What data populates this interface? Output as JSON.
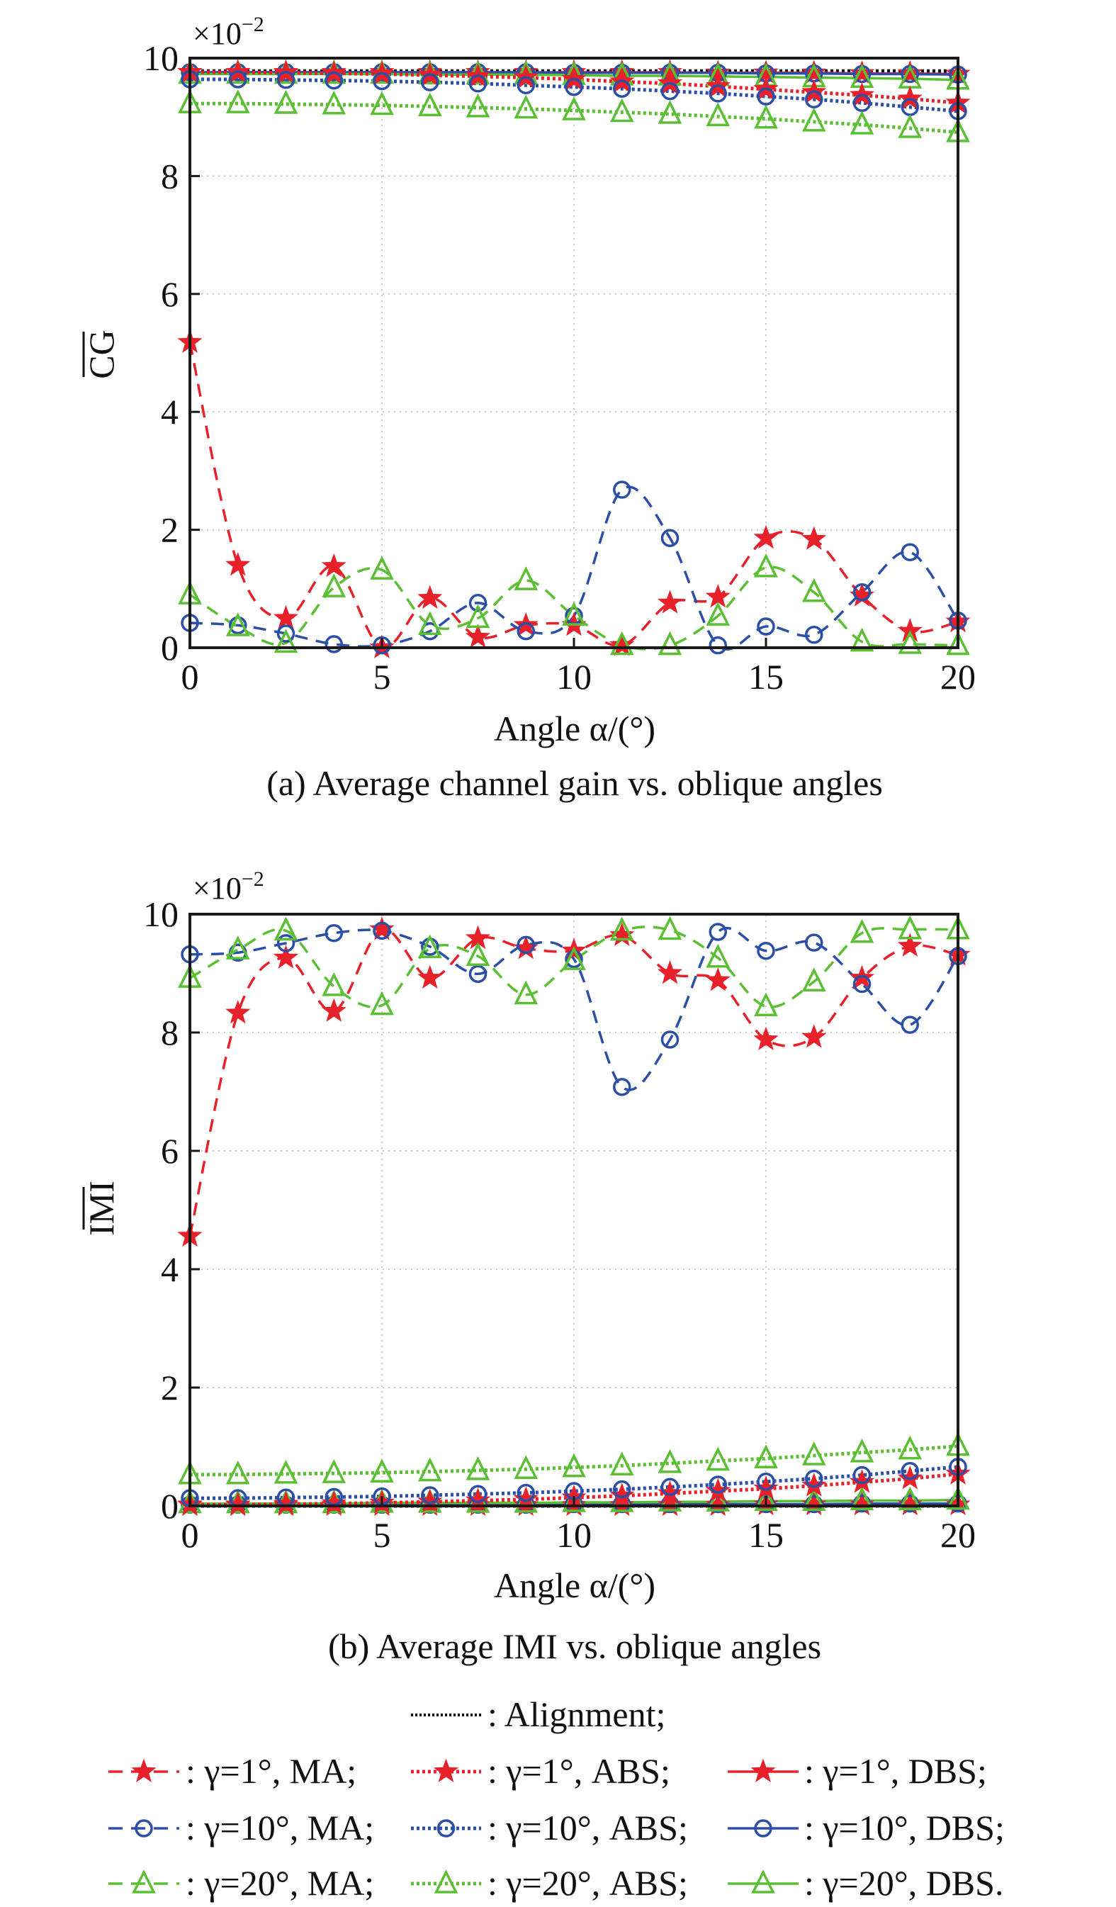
{
  "colors": {
    "red": "#e8202a",
    "blue": "#2a4fa8",
    "green": "#5bbf33",
    "black": "#111111",
    "grid": "#b5b5b5"
  },
  "legend": {
    "alignment": "Alignment;",
    "items": [
      {
        "key": "g1_ma",
        "label": "γ=1°, MA;"
      },
      {
        "key": "g1_abs",
        "label": "γ=1°, ABS;"
      },
      {
        "key": "g1_dbs",
        "label": "γ=1°, DBS;"
      },
      {
        "key": "g10_ma",
        "label": "γ=10°, MA;"
      },
      {
        "key": "g10_abs",
        "label": "γ=10°, ABS;"
      },
      {
        "key": "g10_dbs",
        "label": "γ=10°, DBS;"
      },
      {
        "key": "g20_ma",
        "label": "γ=20°, MA;"
      },
      {
        "key": "g20_abs",
        "label": "γ=20°, ABS;"
      },
      {
        "key": "g20_dbs",
        "label": "γ=20°, DBS."
      }
    ]
  },
  "chart_data": [
    {
      "type": "line",
      "id": "a",
      "title": "(a) Average channel gain vs. oblique angles",
      "xlabel": "Angle α/(°)",
      "ylabel": "CG",
      "ylabel_overline": true,
      "y_multiplier": "×10",
      "y_multiplier_exp": "−2",
      "xlim": [
        0,
        20
      ],
      "ylim": [
        0,
        10
      ],
      "xticks": [
        0,
        5,
        10,
        15,
        20
      ],
      "yticks": [
        0,
        2,
        4,
        6,
        8,
        10
      ],
      "grid": true,
      "x": [
        0,
        1.25,
        2.5,
        3.75,
        5,
        6.25,
        7.5,
        8.75,
        10,
        11.25,
        12.5,
        13.75,
        15,
        16.25,
        17.5,
        18.75,
        20
      ],
      "series": [
        {
          "name": "Alignment",
          "color": "black",
          "style": "dotted",
          "marker": "none",
          "values": [
            9.78,
            9.78,
            9.78,
            9.78,
            9.78,
            9.78,
            9.78,
            9.78,
            9.78,
            9.78,
            9.78,
            9.78,
            9.78,
            9.78,
            9.78,
            9.78,
            9.78
          ]
        },
        {
          "name": "γ=1°, DBS",
          "color": "red",
          "style": "solid",
          "marker": "star",
          "values": [
            9.76,
            9.76,
            9.76,
            9.76,
            9.76,
            9.76,
            9.76,
            9.76,
            9.76,
            9.76,
            9.76,
            9.75,
            9.75,
            9.75,
            9.74,
            9.74,
            9.73
          ]
        },
        {
          "name": "γ=10°, DBS",
          "color": "blue",
          "style": "solid",
          "marker": "circle",
          "values": [
            9.76,
            9.76,
            9.76,
            9.76,
            9.76,
            9.76,
            9.76,
            9.76,
            9.75,
            9.75,
            9.75,
            9.75,
            9.74,
            9.74,
            9.73,
            9.73,
            9.72
          ]
        },
        {
          "name": "γ=20°, DBS",
          "color": "green",
          "style": "solid",
          "marker": "triangle",
          "values": [
            9.73,
            9.73,
            9.73,
            9.73,
            9.73,
            9.72,
            9.72,
            9.72,
            9.71,
            9.7,
            9.7,
            9.69,
            9.68,
            9.67,
            9.66,
            9.65,
            9.63
          ]
        },
        {
          "name": "γ=1°, ABS",
          "color": "red",
          "style": "dotted",
          "marker": "star",
          "values": [
            9.76,
            9.76,
            9.75,
            9.74,
            9.73,
            9.71,
            9.69,
            9.67,
            9.64,
            9.6,
            9.57,
            9.52,
            9.47,
            9.42,
            9.37,
            9.31,
            9.24
          ]
        },
        {
          "name": "γ=10°, ABS",
          "color": "blue",
          "style": "dotted",
          "marker": "circle",
          "values": [
            9.64,
            9.64,
            9.63,
            9.62,
            9.61,
            9.59,
            9.57,
            9.54,
            9.51,
            9.48,
            9.44,
            9.4,
            9.35,
            9.3,
            9.24,
            9.17,
            9.1
          ]
        },
        {
          "name": "γ=20°, ABS",
          "color": "green",
          "style": "dotted",
          "marker": "triangle",
          "values": [
            9.23,
            9.23,
            9.22,
            9.21,
            9.2,
            9.18,
            9.16,
            9.14,
            9.11,
            9.08,
            9.05,
            9.01,
            8.97,
            8.92,
            8.87,
            8.81,
            8.74
          ]
        },
        {
          "name": "γ=1°, MA",
          "color": "red",
          "style": "dashed",
          "marker": "star",
          "values": [
            5.18,
            1.4,
            0.5,
            1.38,
            0.0,
            0.84,
            0.18,
            0.38,
            0.38,
            0.04,
            0.76,
            0.86,
            1.86,
            1.84,
            0.88,
            0.28,
            0.44
          ]
        },
        {
          "name": "γ=10°, MA",
          "color": "blue",
          "style": "dashed",
          "marker": "circle",
          "values": [
            0.42,
            0.38,
            0.24,
            0.06,
            0.04,
            0.28,
            0.76,
            0.28,
            0.54,
            2.68,
            1.86,
            0.04,
            0.36,
            0.22,
            0.94,
            1.62,
            0.46
          ]
        },
        {
          "name": "γ=20°, MA",
          "color": "green",
          "style": "dashed",
          "marker": "triangle",
          "values": [
            0.9,
            0.36,
            0.08,
            1.02,
            1.32,
            0.38,
            0.5,
            1.14,
            0.54,
            0.04,
            0.04,
            0.54,
            1.36,
            0.94,
            0.1,
            0.06,
            0.04
          ]
        }
      ]
    },
    {
      "type": "line",
      "id": "b",
      "title": "(b) Average IMI vs. oblique angles",
      "xlabel": "Angle α/(°)",
      "ylabel": "IMI",
      "ylabel_overline": true,
      "y_multiplier": "×10",
      "y_multiplier_exp": "−2",
      "xlim": [
        0,
        20
      ],
      "ylim": [
        0,
        10
      ],
      "xticks": [
        0,
        5,
        10,
        15,
        20
      ],
      "yticks": [
        0,
        2,
        4,
        6,
        8,
        10
      ],
      "grid": true,
      "x": [
        0,
        1.25,
        2.5,
        3.75,
        5,
        6.25,
        7.5,
        8.75,
        10,
        11.25,
        12.5,
        13.75,
        15,
        16.25,
        17.5,
        18.75,
        20
      ],
      "series": [
        {
          "name": "Alignment",
          "color": "black",
          "style": "dotted",
          "marker": "none",
          "values": [
            0.0,
            0.0,
            0.0,
            0.0,
            0.0,
            0.0,
            0.0,
            0.0,
            0.0,
            0.0,
            0.0,
            0.0,
            0.0,
            0.0,
            0.0,
            0.0,
            0.0
          ]
        },
        {
          "name": "γ=1°, DBS",
          "color": "red",
          "style": "solid",
          "marker": "star",
          "values": [
            0.01,
            0.01,
            0.01,
            0.01,
            0.01,
            0.01,
            0.01,
            0.01,
            0.01,
            0.01,
            0.01,
            0.01,
            0.02,
            0.02,
            0.02,
            0.02,
            0.02
          ]
        },
        {
          "name": "γ=10°, DBS",
          "color": "blue",
          "style": "solid",
          "marker": "circle",
          "values": [
            0.02,
            0.02,
            0.02,
            0.02,
            0.02,
            0.02,
            0.02,
            0.02,
            0.03,
            0.03,
            0.03,
            0.03,
            0.03,
            0.03,
            0.04,
            0.04,
            0.04
          ]
        },
        {
          "name": "γ=20°, DBS",
          "color": "green",
          "style": "solid",
          "marker": "triangle",
          "values": [
            0.04,
            0.04,
            0.04,
            0.04,
            0.05,
            0.05,
            0.05,
            0.05,
            0.06,
            0.06,
            0.07,
            0.07,
            0.08,
            0.08,
            0.09,
            0.09,
            0.1
          ]
        },
        {
          "name": "γ=1°, ABS",
          "color": "red",
          "style": "dotted",
          "marker": "star",
          "values": [
            0.02,
            0.02,
            0.03,
            0.04,
            0.05,
            0.07,
            0.09,
            0.11,
            0.14,
            0.17,
            0.21,
            0.25,
            0.29,
            0.34,
            0.4,
            0.46,
            0.54
          ]
        },
        {
          "name": "γ=10°, ABS",
          "color": "blue",
          "style": "dotted",
          "marker": "circle",
          "values": [
            0.13,
            0.13,
            0.14,
            0.15,
            0.16,
            0.18,
            0.2,
            0.22,
            0.25,
            0.28,
            0.32,
            0.36,
            0.41,
            0.46,
            0.52,
            0.59,
            0.66
          ]
        },
        {
          "name": "γ=20°, ABS",
          "color": "green",
          "style": "dotted",
          "marker": "triangle",
          "values": [
            0.53,
            0.53,
            0.54,
            0.55,
            0.56,
            0.58,
            0.6,
            0.62,
            0.65,
            0.68,
            0.72,
            0.76,
            0.8,
            0.85,
            0.9,
            0.95,
            1.01
          ]
        },
        {
          "name": "γ=1°, MA",
          "color": "red",
          "style": "dashed",
          "marker": "star",
          "values": [
            4.56,
            8.33,
            9.26,
            8.36,
            9.74,
            8.92,
            9.59,
            9.42,
            9.38,
            9.64,
            9.0,
            8.88,
            7.88,
            7.92,
            8.92,
            9.46,
            9.31
          ]
        },
        {
          "name": "γ=10°, MA",
          "color": "blue",
          "style": "dashed",
          "marker": "circle",
          "values": [
            9.32,
            9.35,
            9.51,
            9.68,
            9.72,
            9.45,
            8.99,
            9.48,
            9.24,
            7.08,
            7.88,
            9.7,
            9.38,
            9.52,
            8.82,
            8.13,
            9.29
          ]
        },
        {
          "name": "γ=20°, MA",
          "color": "green",
          "style": "dashed",
          "marker": "triangle",
          "values": [
            8.92,
            9.4,
            9.72,
            8.78,
            8.46,
            9.42,
            9.29,
            8.64,
            9.22,
            9.72,
            9.73,
            9.26,
            8.44,
            8.86,
            9.68,
            9.74,
            9.74
          ]
        }
      ]
    }
  ]
}
